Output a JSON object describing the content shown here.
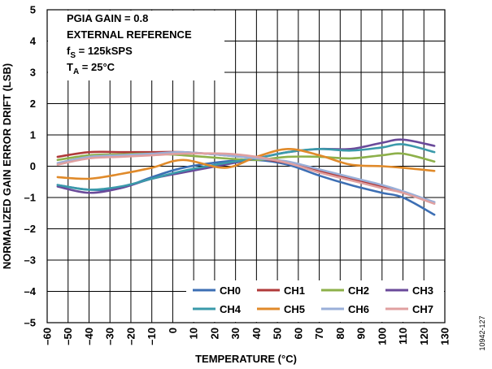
{
  "chart_data": {
    "type": "line",
    "xlabel": "TEMPERATURE (°C)",
    "ylabel": "NORMALIZED GAIN ERROR DRIFT (LSB)",
    "xlim": [
      -60,
      130
    ],
    "ylim": [
      -5,
      5
    ],
    "x_ticks": [
      "–60",
      "–50",
      "–40",
      "–30",
      "–20",
      "–10",
      "0",
      "10",
      "20",
      "30",
      "40",
      "50",
      "60",
      "70",
      "80",
      "90",
      "100",
      "110",
      "120",
      "130"
    ],
    "y_ticks": [
      "–5",
      "–4",
      "–3",
      "–2",
      "–1",
      "0",
      "1",
      "2",
      "3",
      "4",
      "5"
    ],
    "grid": true,
    "legend_position": "bottom-right",
    "annotations": {
      "line1": "PGIA GAIN = 0.8",
      "line2": "EXTERNAL REFERENCE",
      "line3_main": "f",
      "line3_sub": "S",
      "line3_rest": " = 125kSPS",
      "line4_main": "T",
      "line4_sub": "A",
      "line4_rest": " = 25°C"
    },
    "figure_id": "10942-127",
    "x": [
      -55,
      -40,
      -25,
      -10,
      5,
      25,
      40,
      55,
      70,
      85,
      100,
      110,
      125
    ],
    "series": [
      {
        "name": "CH0",
        "color": "#3D6FB4",
        "values": [
          -0.6,
          -0.75,
          -0.7,
          -0.35,
          -0.05,
          0.15,
          0.2,
          0.05,
          -0.3,
          -0.6,
          -0.85,
          -1.0,
          -1.55
        ]
      },
      {
        "name": "CH1",
        "color": "#B03A3A",
        "values": [
          0.3,
          0.45,
          0.45,
          0.45,
          0.45,
          0.35,
          0.25,
          0.1,
          -0.15,
          -0.4,
          -0.65,
          -0.85,
          -1.15
        ]
      },
      {
        "name": "CH2",
        "color": "#8DB04A",
        "values": [
          0.2,
          0.35,
          0.38,
          0.4,
          0.35,
          0.25,
          0.2,
          0.3,
          0.3,
          0.25,
          0.35,
          0.4,
          0.15
        ]
      },
      {
        "name": "CH3",
        "color": "#6A4A9A",
        "values": [
          -0.65,
          -0.85,
          -0.7,
          -0.4,
          -0.2,
          0.05,
          0.25,
          0.45,
          0.55,
          0.55,
          0.75,
          0.85,
          0.65
        ]
      },
      {
        "name": "CH4",
        "color": "#3A9AAA",
        "values": [
          -0.6,
          -0.75,
          -0.65,
          -0.4,
          -0.15,
          0.1,
          0.25,
          0.45,
          0.55,
          0.5,
          0.6,
          0.7,
          0.45
        ]
      },
      {
        "name": "CH5",
        "color": "#E08A2A",
        "values": [
          -0.35,
          -0.4,
          -0.25,
          -0.05,
          0.2,
          -0.05,
          0.3,
          0.55,
          0.35,
          0.05,
          0.0,
          -0.05,
          -0.15
        ]
      },
      {
        "name": "CH6",
        "color": "#9AAFD8",
        "values": [
          0.1,
          0.3,
          0.35,
          0.4,
          0.45,
          0.35,
          0.25,
          0.15,
          -0.1,
          -0.35,
          -0.6,
          -0.8,
          -1.15
        ]
      },
      {
        "name": "CH7",
        "color": "#E0A0A0",
        "values": [
          0.05,
          0.25,
          0.3,
          0.35,
          0.4,
          0.4,
          0.3,
          0.1,
          -0.2,
          -0.45,
          -0.7,
          -0.85,
          -1.2
        ]
      }
    ]
  }
}
